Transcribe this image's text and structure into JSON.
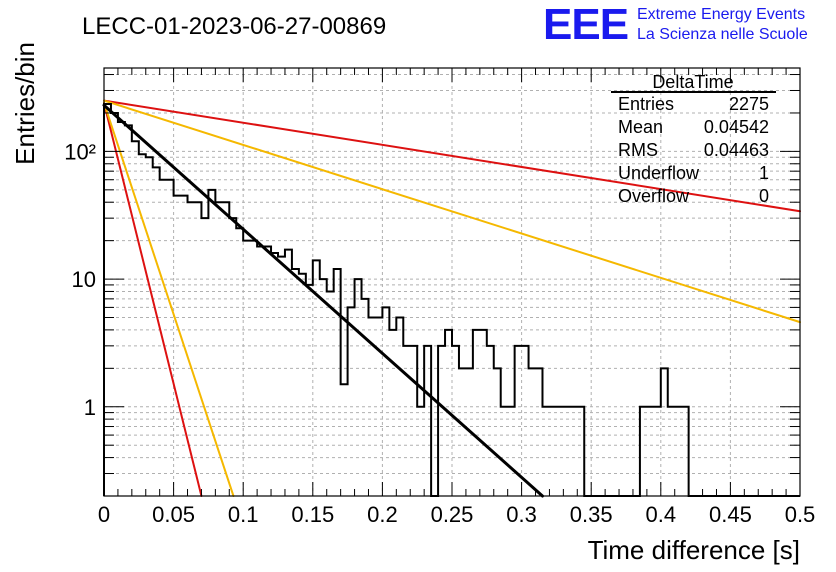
{
  "header": {
    "run_title": "LECC-01-2023-06-27-00869",
    "logo_text": "EEE",
    "logo_line1": "Extreme Energy Events",
    "logo_line2": "La Scienza nelle Scuole"
  },
  "stats": {
    "title": "DeltaTime",
    "rows": [
      {
        "label": "Entries",
        "value": "2275"
      },
      {
        "label": "Mean",
        "value": "0.04542"
      },
      {
        "label": "RMS",
        "value": "0.04463"
      },
      {
        "label": "Underflow",
        "value": "1"
      },
      {
        "label": "Overflow",
        "value": "0"
      }
    ]
  },
  "colors": {
    "histogram": "#000000",
    "fit": "#000000",
    "red": "#dd1111",
    "orange": "#f5b800",
    "grid": "#b0b0b0",
    "logo": "#1a1aee"
  },
  "chart_data": {
    "type": "line",
    "title": "LECC-01-2023-06-27-00869",
    "xlabel": "Time difference [s]",
    "ylabel": "Entries/bin",
    "x_scale": "linear",
    "y_scale": "log",
    "xlim": [
      0,
      0.5
    ],
    "ylim": [
      0.2,
      450
    ],
    "grid": true,
    "x_ticks": [
      0,
      0.05,
      0.1,
      0.15,
      0.2,
      0.25,
      0.3,
      0.35,
      0.4,
      0.45,
      0.5
    ],
    "x_tick_labels": [
      "0",
      "0.05",
      "0.1",
      "0.15",
      "0.2",
      "0.25",
      "0.3",
      "0.35",
      "0.4",
      "0.45",
      "0.5"
    ],
    "y_ticks": [
      1,
      10,
      100
    ],
    "y_tick_labels": [
      "1",
      "10",
      "10²"
    ],
    "histogram": {
      "bin_width": 0.005,
      "counts": [
        235,
        200,
        170,
        160,
        120,
        95,
        90,
        75,
        60,
        60,
        45,
        45,
        40,
        40,
        30,
        50,
        40,
        40,
        30,
        25,
        20,
        20,
        18,
        18,
        16,
        15,
        17,
        12,
        11,
        9,
        14,
        10,
        8,
        12,
        1.5,
        6,
        10,
        7,
        5,
        5,
        6,
        4,
        5,
        3,
        3,
        1,
        3,
        0.2,
        3,
        4,
        3,
        2,
        2,
        4,
        4,
        3,
        2,
        1,
        1,
        3,
        3,
        2,
        2,
        1,
        1,
        1,
        1,
        1,
        1,
        0.2,
        0.2,
        0.2,
        0.2,
        0.2,
        0.2,
        0.2,
        0.2,
        1,
        1,
        1,
        2,
        1,
        1,
        1,
        0.2,
        0.2,
        0.2,
        0.2,
        0.2,
        0.2,
        0.2,
        0.2,
        0.2,
        0.2,
        0.2,
        0.2,
        0.2,
        0.2,
        0.2,
        0.2
      ]
    },
    "series": [
      {
        "color": "#000000",
        "x": [
          0,
          0.315
        ],
        "y": [
          230,
          0.2
        ]
      },
      {
        "color": "#dd1111",
        "x": [
          0,
          0.5
        ],
        "y": [
          250,
          34
        ]
      },
      {
        "color": "#f5b800",
        "x": [
          0,
          0.5
        ],
        "y": [
          250,
          4.6
        ]
      },
      {
        "color": "#dd1111",
        "x": [
          0,
          0.07
        ],
        "y": [
          240,
          0.2
        ]
      },
      {
        "color": "#f5b800",
        "x": [
          0,
          0.093
        ],
        "y": [
          240,
          0.2
        ]
      }
    ]
  }
}
